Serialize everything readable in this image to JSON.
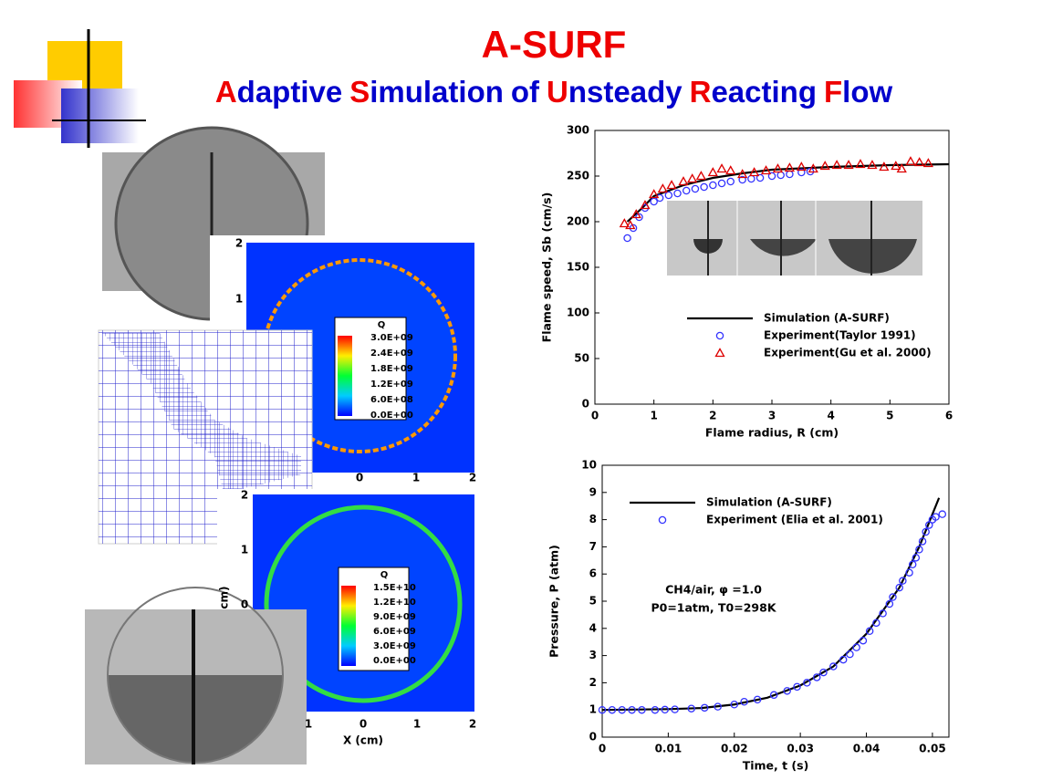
{
  "header": {
    "title": "A-SURF",
    "subtitle_words": [
      "Adaptive",
      "Simulation",
      "of",
      "Unsteady",
      "Reacting",
      "Flow"
    ]
  },
  "panels": [
    {
      "colorbar_title": "Q",
      "colorbar_labels": [
        "3.0E+09",
        "2.4E+09",
        "1.8E+09",
        "1.2E+09",
        "6.0E+08",
        "0.0E+00"
      ],
      "x_tick_labels": [
        "0",
        "1",
        "2"
      ],
      "y_tick_labels": [
        "2",
        "1"
      ]
    },
    {
      "colorbar_title": "Q",
      "colorbar_labels": [
        "1.5E+10",
        "1.2E+10",
        "9.0E+09",
        "6.0E+09",
        "3.0E+09",
        "0.0E+00"
      ],
      "x_tick_labels": [
        "1",
        "0",
        "1",
        "2"
      ],
      "y_tick_labels": [
        "2",
        "1",
        "0"
      ],
      "x_label": "X (cm)",
      "y_label": "cm)"
    }
  ],
  "chart_data": [
    {
      "type": "line",
      "xlabel": "Flame radius, R (cm)",
      "ylabel": "Flame speed, Sb (cm/s)",
      "xlim": [
        0,
        6
      ],
      "xticks": [
        0,
        1,
        2,
        3,
        4,
        5,
        6
      ],
      "ylim": [
        0,
        300
      ],
      "yticks": [
        0,
        50,
        100,
        150,
        200,
        250,
        300
      ],
      "legend": "lower right",
      "series": [
        {
          "name": "Simulation (A-SURF)",
          "color": "#000000",
          "x": [
            0.55,
            0.8,
            1,
            1.5,
            2,
            2.5,
            3,
            4,
            5,
            6
          ],
          "values": [
            200,
            215,
            228,
            240,
            248,
            253,
            257,
            260,
            262,
            263
          ]
        },
        {
          "name": "Experiment(Taylor 1991)",
          "color": "#3333ff",
          "marker": "circle",
          "x": [
            0.55,
            0.65,
            0.75,
            0.85,
            1,
            1.1,
            1.25,
            1.4,
            1.55,
            1.7,
            1.85,
            2,
            2.15,
            2.3,
            2.5,
            2.65,
            2.8,
            3,
            3.15,
            3.3,
            3.5,
            3.65
          ],
          "values": [
            182,
            193,
            205,
            215,
            222,
            226,
            229,
            231,
            234,
            236,
            238,
            240,
            242,
            244,
            246,
            247,
            248,
            250,
            251,
            252,
            254,
            255
          ]
        },
        {
          "name": "Experiment(Gu et al. 2000)",
          "color": "#dd0000",
          "marker": "triangle",
          "x": [
            0.5,
            0.6,
            0.7,
            0.85,
            1,
            1.15,
            1.3,
            1.5,
            1.65,
            1.8,
            2,
            2.15,
            2.3,
            2.5,
            2.7,
            2.9,
            3.1,
            3.3,
            3.5,
            3.7,
            3.9,
            4.1,
            4.3,
            4.5,
            4.7,
            4.9,
            5.1,
            5.2,
            5.35,
            5.5,
            5.65
          ],
          "values": [
            198,
            196,
            208,
            218,
            230,
            236,
            240,
            244,
            247,
            250,
            254,
            258,
            256,
            252,
            254,
            256,
            258,
            259,
            260,
            258,
            261,
            262,
            262,
            263,
            262,
            260,
            261,
            258,
            266,
            265,
            264
          ]
        }
      ]
    },
    {
      "type": "line",
      "xlabel": "Time, t (s)",
      "ylabel": "Pressure, P (atm)",
      "xlim": [
        0,
        0.0525
      ],
      "xticks": [
        0,
        0.01,
        0.02,
        0.03,
        0.04,
        0.05
      ],
      "ylim": [
        0,
        10
      ],
      "yticks": [
        0,
        1,
        2,
        3,
        4,
        5,
        6,
        7,
        8,
        9,
        10
      ],
      "legend": "upper left",
      "annotations": [
        "CH4/air, φ =1.0",
        "P0=1atm, T0=298K"
      ],
      "series": [
        {
          "name": "Simulation (A-SURF)",
          "color": "#000000",
          "x": [
            0,
            0.01,
            0.015,
            0.02,
            0.025,
            0.03,
            0.035,
            0.04,
            0.045,
            0.048,
            0.05,
            0.051
          ],
          "values": [
            1,
            1.03,
            1.07,
            1.2,
            1.45,
            1.9,
            2.6,
            3.8,
            5.5,
            7,
            8.2,
            8.8
          ]
        },
        {
          "name": "Experiment (Elia et al. 2001)",
          "color": "#3333ff",
          "marker": "circle",
          "x": [
            0,
            0.0015,
            0.003,
            0.0045,
            0.006,
            0.008,
            0.0095,
            0.011,
            0.0135,
            0.0155,
            0.0175,
            0.02,
            0.0215,
            0.0235,
            0.026,
            0.028,
            0.0295,
            0.031,
            0.0325,
            0.0335,
            0.035,
            0.0365,
            0.0375,
            0.0385,
            0.0395,
            0.0405,
            0.0415,
            0.0425,
            0.0435,
            0.044,
            0.045,
            0.0455,
            0.0465,
            0.047,
            0.0475,
            0.048,
            0.0485,
            0.049,
            0.0495,
            0.05,
            0.0505,
            0.0515
          ],
          "values": [
            1,
            1,
            1,
            1,
            1,
            1,
            1.01,
            1.02,
            1.05,
            1.08,
            1.12,
            1.2,
            1.3,
            1.38,
            1.55,
            1.7,
            1.85,
            2.0,
            2.2,
            2.38,
            2.6,
            2.85,
            3.05,
            3.3,
            3.55,
            3.9,
            4.2,
            4.55,
            4.9,
            5.15,
            5.5,
            5.75,
            6.05,
            6.35,
            6.6,
            6.9,
            7.2,
            7.55,
            7.8,
            8.0,
            8.1,
            8.2
          ]
        }
      ]
    }
  ]
}
